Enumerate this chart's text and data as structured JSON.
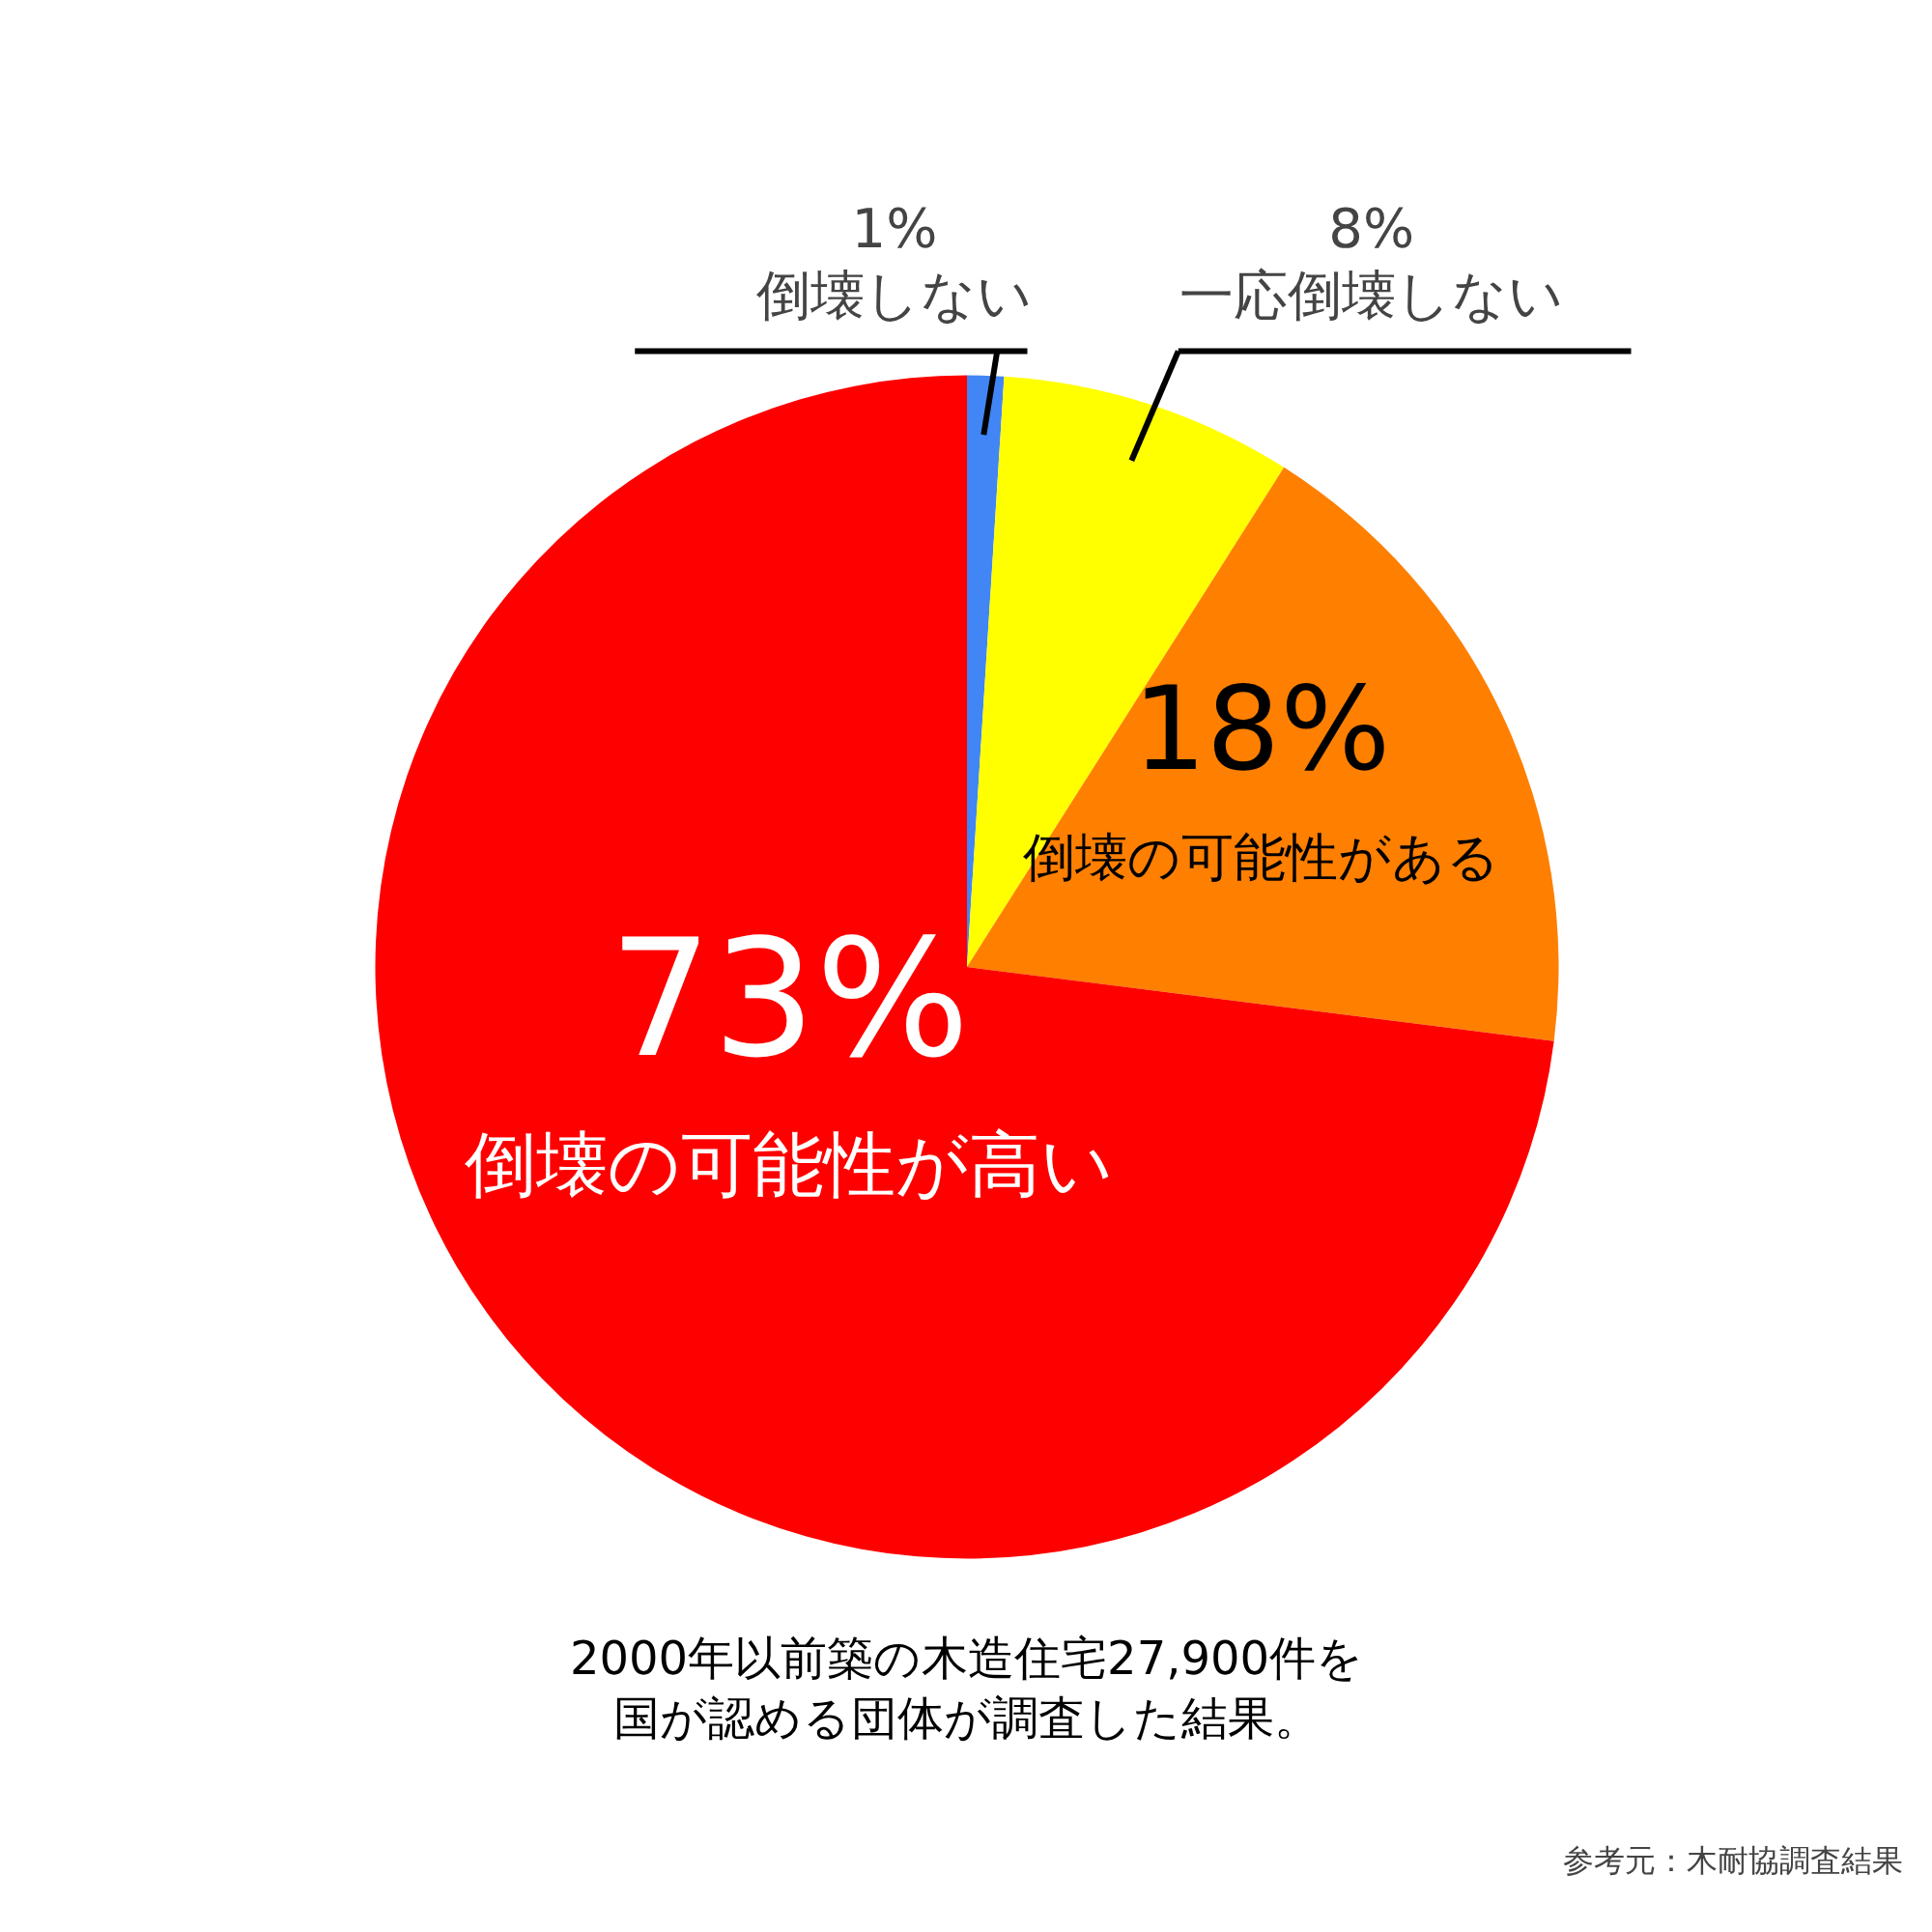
{
  "chart_data": {
    "type": "pie",
    "categories": [
      "倒壊しない",
      "一応倒壊しない",
      "倒壊の可能性がある",
      "倒壊の可能性が高い"
    ],
    "values": [
      1,
      8,
      18,
      73
    ],
    "colors": [
      "#4285f4",
      "#ffff00",
      "#ff7f00",
      "#ff0000"
    ],
    "value_labels": [
      "1%",
      "8%",
      "18%",
      "73%"
    ],
    "annotations": [
      "2000年以前築の木造住宅27,900件を",
      "国が認める団体が調査した結果。",
      "参考元：木耐協調査結果"
    ]
  }
}
